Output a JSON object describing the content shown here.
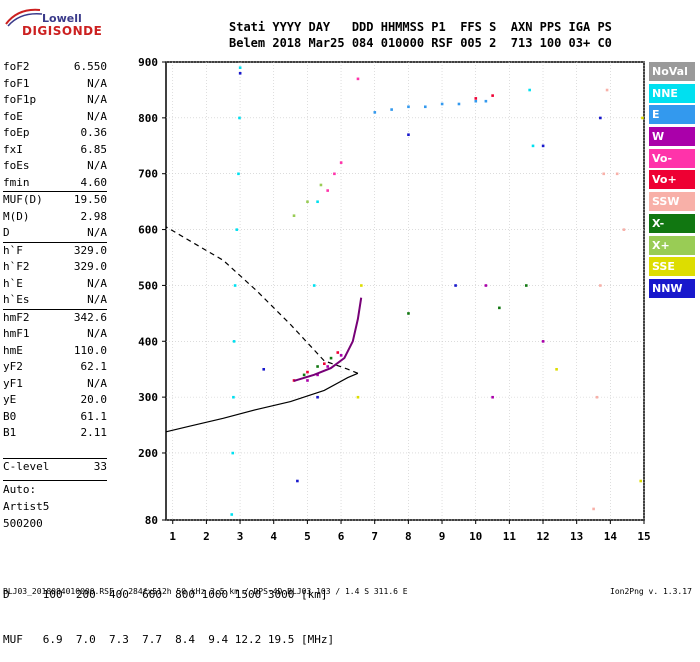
{
  "logo": {
    "line1": "Lowell",
    "line2": "DIGISONDE"
  },
  "header": {
    "labels": "Stati YYYY DAY   DDD HHMMSS P1  FFS S  AXN PPS IGA PS",
    "values": "Belem 2018 Mar25 084 010000 RSF 005 2  713 100 03+ C0"
  },
  "params": [
    {
      "name": "foF2",
      "value": "6.550"
    },
    {
      "name": "foF1",
      "value": "N/A"
    },
    {
      "name": "foF1p",
      "value": "N/A"
    },
    {
      "name": "foE",
      "value": "N/A"
    },
    {
      "name": "foEp",
      "value": "0.36"
    },
    {
      "name": "fxI",
      "value": "6.85"
    },
    {
      "name": "foEs",
      "value": "N/A"
    },
    {
      "name": "fmin",
      "value": "4.60"
    },
    {
      "name": "MUF(D)",
      "value": "19.50"
    },
    {
      "name": "M(D)",
      "value": "2.98"
    },
    {
      "name": "D",
      "value": "N/A"
    },
    {
      "name": "h`F",
      "value": "329.0"
    },
    {
      "name": "h`F2",
      "value": "329.0"
    },
    {
      "name": "h`E",
      "value": "N/A"
    },
    {
      "name": "h`Es",
      "value": "N/A"
    },
    {
      "name": "hmF2",
      "value": "342.6"
    },
    {
      "name": "hmF1",
      "value": "N/A"
    },
    {
      "name": "hmE",
      "value": "110.0"
    },
    {
      "name": "yF2",
      "value": "62.1"
    },
    {
      "name": "yF1",
      "value": "N/A"
    },
    {
      "name": "yE",
      "value": "20.0"
    },
    {
      "name": "B0",
      "value": "61.1"
    },
    {
      "name": "B1",
      "value": "2.11"
    }
  ],
  "clevel": {
    "name": "C-level",
    "value": "33"
  },
  "auto": [
    "Auto:",
    "Artist5",
    "500200"
  ],
  "legend": [
    {
      "label": "NoVal",
      "color": "#9a9a9a"
    },
    {
      "label": "NNE",
      "color": "#00e0f0"
    },
    {
      "label": "E",
      "color": "#3399ee"
    },
    {
      "label": "W",
      "color": "#aa00aa"
    },
    {
      "label": "Vo-",
      "color": "#ff33aa"
    },
    {
      "label": "Vo+",
      "color": "#ee0033"
    },
    {
      "label": "SSW",
      "color": "#f8b0a8"
    },
    {
      "label": "X-",
      "color": "#117711"
    },
    {
      "label": "X+",
      "color": "#99cc55"
    },
    {
      "label": "SSE",
      "color": "#dddd00"
    },
    {
      "label": "NNW",
      "color": "#1818cc"
    }
  ],
  "muf_table": {
    "row1": "D     100  200  400  600  800 1000 1500 3000 [km]",
    "row2": "MUF   6.9  7.0  7.3  7.7  8.4  9.4 12.2 19.5 [MHz]"
  },
  "footer": {
    "left": "BLJ03_2018084010000.RSF / 284fx512h 50 kHz 2.5 km / DPS-4D BLJ03 103 / 1.4 S 311.6 E",
    "right": "Ion2Png v. 1.3.17"
  },
  "chart_data": {
    "type": "scatter",
    "xlabel": "",
    "ylabel": "",
    "xlim": [
      0.8,
      15
    ],
    "ylim": [
      80,
      900
    ],
    "x_ticks": [
      1,
      2,
      3,
      4,
      5,
      6,
      7,
      8,
      9,
      10,
      11,
      12,
      13,
      14,
      15
    ],
    "y_ticks": [
      80,
      200,
      300,
      400,
      500,
      600,
      700,
      800,
      900
    ],
    "grid": true,
    "legend_position": "right",
    "series": [
      {
        "name": "NNE",
        "points": [
          [
            2.75,
            90
          ],
          [
            2.78,
            200
          ],
          [
            2.8,
            300
          ],
          [
            2.82,
            400
          ],
          [
            2.85,
            500
          ],
          [
            2.9,
            600
          ],
          [
            2.95,
            700
          ],
          [
            2.98,
            800
          ],
          [
            3.0,
            890
          ],
          [
            5.2,
            500
          ],
          [
            5.3,
            650
          ],
          [
            11.6,
            850
          ],
          [
            11.7,
            750
          ]
        ]
      },
      {
        "name": "E",
        "points": [
          [
            7.0,
            810
          ],
          [
            7.5,
            815
          ],
          [
            8.0,
            820
          ],
          [
            8.5,
            820
          ],
          [
            9.0,
            825
          ],
          [
            9.5,
            825
          ],
          [
            10.0,
            830
          ],
          [
            10.3,
            830
          ]
        ]
      },
      {
        "name": "W",
        "points": [
          [
            5.0,
            330
          ],
          [
            5.3,
            340
          ],
          [
            5.6,
            355
          ],
          [
            6.0,
            375
          ],
          [
            10.3,
            500
          ],
          [
            10.5,
            300
          ],
          [
            12.0,
            400
          ]
        ]
      },
      {
        "name": "Vo-",
        "points": [
          [
            5.6,
            670
          ],
          [
            5.8,
            700
          ],
          [
            6.0,
            720
          ],
          [
            6.5,
            870
          ]
        ]
      },
      {
        "name": "Vo+",
        "points": [
          [
            4.6,
            330
          ],
          [
            5.0,
            345
          ],
          [
            5.5,
            360
          ],
          [
            5.9,
            380
          ],
          [
            10.0,
            835
          ],
          [
            10.5,
            840
          ]
        ]
      },
      {
        "name": "SSW",
        "points": [
          [
            13.5,
            100
          ],
          [
            13.6,
            300
          ],
          [
            13.7,
            500
          ],
          [
            13.8,
            700
          ],
          [
            13.9,
            850
          ],
          [
            14.2,
            700
          ],
          [
            14.4,
            600
          ]
        ]
      },
      {
        "name": "X-",
        "points": [
          [
            4.9,
            340
          ],
          [
            5.3,
            355
          ],
          [
            5.7,
            370
          ],
          [
            8.0,
            450
          ],
          [
            10.7,
            460
          ],
          [
            11.5,
            500
          ]
        ]
      },
      {
        "name": "X+",
        "points": [
          [
            4.6,
            625
          ],
          [
            5.0,
            650
          ],
          [
            5.4,
            680
          ]
        ]
      },
      {
        "name": "SSE",
        "points": [
          [
            6.5,
            300
          ],
          [
            6.6,
            500
          ],
          [
            12.4,
            350
          ],
          [
            14.9,
            150
          ],
          [
            14.95,
            800
          ]
        ]
      },
      {
        "name": "NNW",
        "points": [
          [
            3.0,
            880
          ],
          [
            3.7,
            350
          ],
          [
            4.7,
            150
          ],
          [
            5.3,
            300
          ],
          [
            8.0,
            770
          ],
          [
            9.4,
            500
          ],
          [
            12.0,
            750
          ],
          [
            13.7,
            800
          ]
        ]
      }
    ],
    "profile": [
      [
        0.8,
        238
      ],
      [
        1.5,
        248
      ],
      [
        2.5,
        262
      ],
      [
        3.5,
        278
      ],
      [
        4.5,
        292
      ],
      [
        5.5,
        312
      ],
      [
        6.2,
        335
      ],
      [
        6.5,
        342.6
      ],
      [
        6.2,
        350
      ],
      [
        5.5,
        365
      ],
      [
        4.5,
        430
      ],
      [
        3.5,
        490
      ],
      [
        2.5,
        545
      ],
      [
        1.5,
        580
      ],
      [
        0.8,
        605
      ]
    ],
    "trace": [
      [
        4.6,
        329
      ],
      [
        5.2,
        340
      ],
      [
        5.7,
        352
      ],
      [
        6.1,
        370
      ],
      [
        6.35,
        400
      ],
      [
        6.5,
        440
      ],
      [
        6.6,
        478
      ]
    ]
  }
}
